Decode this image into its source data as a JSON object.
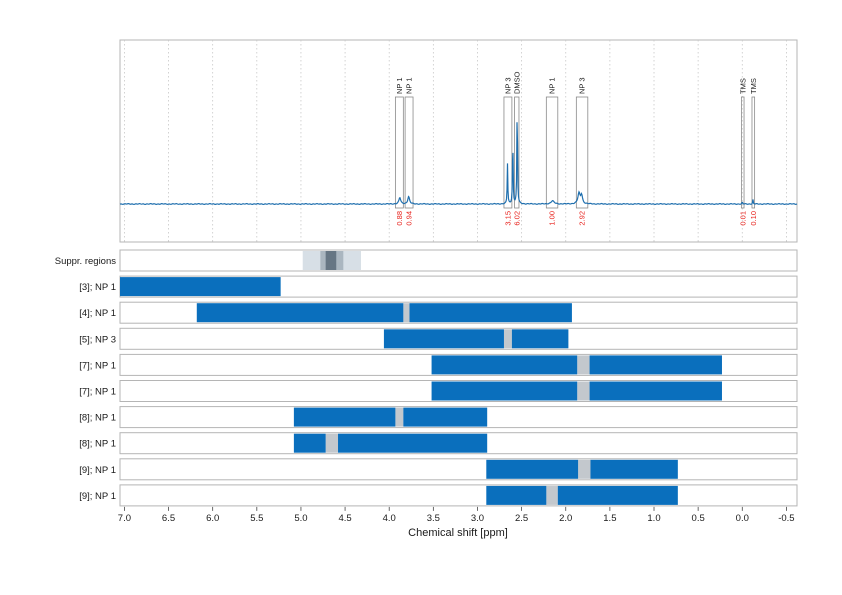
{
  "chart_data": {
    "type": "nmr-spectrum-with-region-map",
    "xlabel": "Chemical shift [ppm]",
    "xlim": [
      7.05,
      -0.62
    ],
    "xticks": [
      7.0,
      6.5,
      6.0,
      5.5,
      5.0,
      4.5,
      4.0,
      3.5,
      3.0,
      2.5,
      2.0,
      1.5,
      1.0,
      0.5,
      0.0,
      -0.5
    ],
    "xtick_labels": [
      "7.0",
      "6.5",
      "6.0",
      "5.5",
      "5.0",
      "4.5",
      "4.0",
      "3.5",
      "3.0",
      "2.5",
      "2.0",
      "1.5",
      "1.0",
      "0.5",
      "0.0",
      "-0.5"
    ],
    "colors": {
      "spectrum": "#1f6fae",
      "bar": "#0a6fbd",
      "gap": "#c3c8cd",
      "integral": "#e8221c",
      "suppr_light": "#d7dfe6",
      "suppr_mid": "#aab6c0",
      "suppr_dark": "#667684",
      "frame": "#b5b5b5",
      "grid": "#c8c8c8"
    },
    "spectrum_peaks": [
      {
        "ppm": 3.88,
        "height": 0.06,
        "width": 0.012
      },
      {
        "ppm": 3.78,
        "height": 0.07,
        "width": 0.012
      },
      {
        "ppm": 2.66,
        "height": 0.38,
        "width": 0.004
      },
      {
        "ppm": 2.6,
        "height": 0.65,
        "width": 0.004
      },
      {
        "ppm": 2.55,
        "height": 1.0,
        "width": 0.004
      },
      {
        "ppm": 2.15,
        "height": 0.03,
        "width": 0.02
      },
      {
        "ppm": 1.85,
        "height": 0.1,
        "width": 0.015
      },
      {
        "ppm": 1.82,
        "height": 0.08,
        "width": 0.012
      },
      {
        "ppm": 0.0,
        "height": 0.02,
        "width": 0.003
      },
      {
        "ppm": -0.12,
        "height": 0.05,
        "width": 0.003
      }
    ],
    "peak_annotations": [
      {
        "label": "NP 1",
        "from": 3.93,
        "to": 3.84,
        "integral": "0.88"
      },
      {
        "label": "NP 1",
        "from": 3.82,
        "to": 3.73,
        "integral": "0.94"
      },
      {
        "label": "NP 3",
        "from": 2.7,
        "to": 2.61,
        "integral": "3.15"
      },
      {
        "label": "DMSO",
        "from": 2.58,
        "to": 2.53,
        "integral": "6.02"
      },
      {
        "label": "NP 1",
        "from": 2.22,
        "to": 2.09,
        "integral": "1.00"
      },
      {
        "label": "NP 3",
        "from": 1.88,
        "to": 1.75,
        "integral": "2.92"
      },
      {
        "label": "TMS",
        "from": 0.01,
        "to": -0.02,
        "integral": "0.01"
      },
      {
        "label": "TMS",
        "from": -0.11,
        "to": -0.14,
        "integral": "0.10"
      }
    ],
    "suppression_regions": [
      {
        "from": 4.98,
        "to": 4.32,
        "shade": "light"
      },
      {
        "from": 4.78,
        "to": 4.52,
        "shade": "mid"
      },
      {
        "from": 4.72,
        "to": 4.6,
        "shade": "dark"
      }
    ],
    "rows": [
      {
        "label": "Suppr. regions",
        "segments": [],
        "gap": null
      },
      {
        "label": "[3]; NP 1",
        "segments": [
          [
            7.05,
            5.23
          ]
        ],
        "gap": null
      },
      {
        "label": "[4]; NP 1",
        "segments": [
          [
            6.18,
            3.84
          ],
          [
            3.77,
            1.93
          ]
        ],
        "gap": [
          3.84,
          3.77
        ]
      },
      {
        "label": "[5]; NP 3",
        "segments": [
          [
            4.06,
            2.7
          ],
          [
            2.61,
            1.97
          ]
        ],
        "gap": [
          2.7,
          2.61
        ]
      },
      {
        "label": "[7]; NP 1",
        "segments": [
          [
            3.52,
            1.87
          ],
          [
            1.73,
            0.23
          ]
        ],
        "gap": [
          1.87,
          1.73
        ]
      },
      {
        "label": "[7]; NP 1",
        "segments": [
          [
            3.52,
            1.87
          ],
          [
            1.73,
            0.23
          ]
        ],
        "gap": [
          1.87,
          1.73
        ]
      },
      {
        "label": "[8]; NP 1",
        "segments": [
          [
            5.08,
            3.93
          ],
          [
            3.84,
            2.89
          ]
        ],
        "gap": [
          3.93,
          3.84
        ]
      },
      {
        "label": "[8]; NP 1",
        "segments": [
          [
            5.08,
            4.72
          ],
          [
            4.58,
            2.89
          ]
        ],
        "gap": [
          4.72,
          4.58
        ]
      },
      {
        "label": "[9]; NP 1",
        "segments": [
          [
            2.9,
            1.86
          ],
          [
            1.72,
            0.73
          ]
        ],
        "gap": [
          1.86,
          1.72
        ]
      },
      {
        "label": "[9]; NP 1",
        "segments": [
          [
            2.9,
            2.22
          ],
          [
            2.09,
            0.73
          ]
        ],
        "gap": [
          2.22,
          2.09
        ]
      }
    ]
  }
}
